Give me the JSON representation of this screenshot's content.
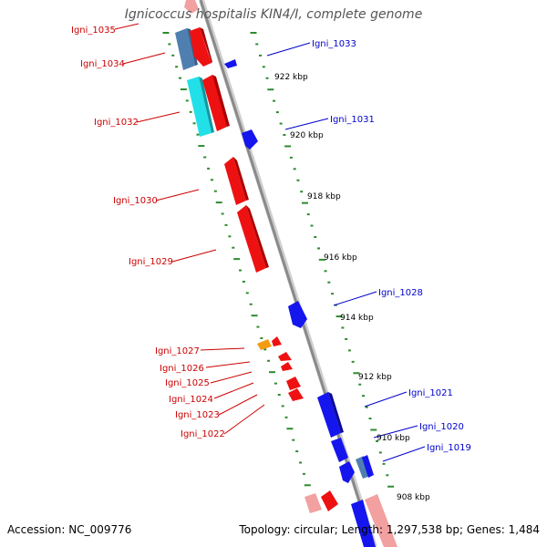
{
  "title": "Ignicoccus hospitalis KIN4/I, complete genome",
  "footer": {
    "accession": "Accession: NC_009776",
    "summary": "Topology: circular; Length: 1,297,538 bp; Genes: 1,484"
  },
  "colors": {
    "backbone": "#8a8a8a",
    "tick": "#2e8b2e",
    "label_left": "#cc0000",
    "label_right": "#0000cc",
    "gene_red": "#ee1111",
    "gene_blue": "#1515ee",
    "gene_cyan": "#22e0e8",
    "gene_steel": "#4f7fb0",
    "gene_pink": "#f2a0a0",
    "gene_orange": "#f39c12"
  },
  "scale_labels": [
    "922 kbp",
    "920 kbp",
    "918 kbp",
    "916 kbp",
    "914 kbp",
    "912 kbp",
    "910 kbp",
    "908 kbp"
  ],
  "genes_left": [
    "Igni_1035",
    "Igni_1034",
    "Igni_1032",
    "Igni_1030",
    "Igni_1029",
    "Igni_1027",
    "Igni_1026",
    "Igni_1025",
    "Igni_1024",
    "Igni_1023",
    "Igni_1022"
  ],
  "genes_right": [
    "Igni_1033",
    "Igni_1031",
    "Igni_1028",
    "Igni_1021",
    "Igni_1020",
    "Igni_1019"
  ]
}
